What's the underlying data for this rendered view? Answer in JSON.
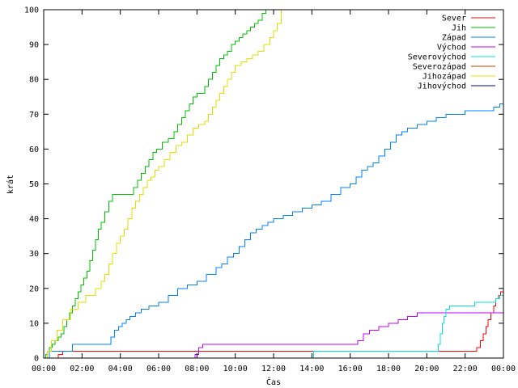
{
  "chart_data": {
    "type": "line",
    "title": "",
    "xlabel": "Čas",
    "ylabel": "krát",
    "xlim": [
      0,
      24
    ],
    "ylim": [
      0,
      100
    ],
    "x_ticks": [
      {
        "value": 0,
        "label": "00:00"
      },
      {
        "value": 2,
        "label": "02:00"
      },
      {
        "value": 4,
        "label": "04:00"
      },
      {
        "value": 6,
        "label": "06:00"
      },
      {
        "value": 8,
        "label": "08:00"
      },
      {
        "value": 10,
        "label": "10:00"
      },
      {
        "value": 12,
        "label": "12:00"
      },
      {
        "value": 14,
        "label": "14:00"
      },
      {
        "value": 16,
        "label": "16:00"
      },
      {
        "value": 18,
        "label": "18:00"
      },
      {
        "value": 20,
        "label": "20:00"
      },
      {
        "value": 22,
        "label": "22:00"
      },
      {
        "value": 24,
        "label": "00:00"
      }
    ],
    "y_ticks": [
      0,
      10,
      20,
      30,
      40,
      50,
      60,
      70,
      80,
      90,
      100
    ],
    "grid": false,
    "legend_position": "top-right",
    "step": true,
    "series": [
      {
        "name": "Sever",
        "color": "#ff0000",
        "x": [
          0.0,
          0.75,
          1.0,
          8.0,
          14.0,
          22.6,
          22.8,
          22.95,
          23.1,
          23.2,
          23.35,
          23.5,
          23.6,
          23.75,
          23.85,
          24.0
        ],
        "y": [
          0,
          1,
          2,
          2,
          2,
          3,
          5,
          7,
          9,
          11,
          13,
          15,
          17,
          18,
          19,
          21
        ]
      },
      {
        "name": "Jih",
        "color": "#00c000",
        "x": [
          0.0,
          0.1,
          0.2,
          0.3,
          0.45,
          0.6,
          0.75,
          0.9,
          1.05,
          1.2,
          1.35,
          1.5,
          1.65,
          1.8,
          1.95,
          2.1,
          2.25,
          2.4,
          2.55,
          2.7,
          2.85,
          3.0,
          3.2,
          3.4,
          3.6,
          4.5,
          4.7,
          4.9,
          5.1,
          5.3,
          5.5,
          5.7,
          5.9,
          6.2,
          6.5,
          6.8,
          7.0,
          7.2,
          7.4,
          7.6,
          7.8,
          8.0,
          8.2,
          8.4,
          8.6,
          8.8,
          9.0,
          9.2,
          9.4,
          9.6,
          9.8,
          10.0,
          10.2,
          10.4,
          10.6,
          10.8,
          11.0,
          11.2,
          11.4,
          11.6
        ],
        "y": [
          0,
          1,
          2,
          3,
          4,
          5,
          6,
          7,
          9,
          11,
          13,
          15,
          17,
          19,
          21,
          23,
          25,
          28,
          31,
          34,
          37,
          39,
          42,
          45,
          47,
          47,
          49,
          51,
          53,
          55,
          57,
          59,
          60,
          62,
          63,
          65,
          67,
          69,
          71,
          73,
          75,
          76,
          76,
          78,
          80,
          82,
          84,
          86,
          87,
          88,
          90,
          91,
          92,
          93,
          94,
          95,
          96,
          97,
          99,
          100
        ]
      },
      {
        "name": "Západ",
        "color": "#0080ff",
        "x": [
          0.0,
          0.3,
          1.5,
          3.5,
          3.7,
          3.9,
          4.1,
          4.3,
          4.5,
          4.8,
          5.1,
          5.5,
          6.0,
          6.5,
          7.0,
          7.5,
          8.0,
          8.5,
          9.0,
          9.3,
          9.6,
          9.9,
          10.2,
          10.5,
          10.8,
          11.1,
          11.4,
          11.7,
          12.0,
          12.5,
          13.0,
          13.5,
          14.0,
          14.5,
          15.0,
          15.5,
          16.0,
          16.3,
          16.6,
          16.9,
          17.2,
          17.5,
          17.8,
          18.1,
          18.4,
          18.7,
          19.0,
          19.5,
          20.0,
          20.5,
          21.0,
          21.5,
          22.0,
          22.5,
          23.0,
          23.5,
          23.8,
          24.0
        ],
        "y": [
          0,
          2,
          4,
          6,
          8,
          9,
          10,
          11,
          12,
          13,
          14,
          15,
          16,
          18,
          20,
          21,
          22,
          24,
          26,
          27,
          29,
          30,
          32,
          34,
          36,
          37,
          38,
          39,
          40,
          41,
          42,
          43,
          44,
          45,
          47,
          49,
          50,
          52,
          54,
          55,
          56,
          58,
          60,
          62,
          64,
          65,
          66,
          67,
          68,
          69,
          70,
          70,
          71,
          71,
          71,
          72,
          73,
          73
        ]
      },
      {
        "name": "Východ",
        "color": "#c000ff",
        "x": [
          0.0,
          7.9,
          8.1,
          8.3,
          14.5,
          16.4,
          16.7,
          17.0,
          17.5,
          18.0,
          18.5,
          19.0,
          19.5,
          20.0,
          24.0
        ],
        "y": [
          0,
          1,
          3,
          4,
          4,
          5,
          7,
          8,
          9,
          10,
          11,
          12,
          13,
          13,
          13
        ]
      },
      {
        "name": "Severovýchod",
        "color": "#00e0e0",
        "x": [
          0.0,
          14.1,
          20.5,
          20.6,
          20.7,
          20.8,
          20.9,
          21.0,
          21.2,
          22.0,
          22.5,
          23.0,
          23.3,
          23.6,
          23.8,
          24.0
        ],
        "y": [
          0,
          2,
          2,
          4,
          7,
          10,
          12,
          14,
          15,
          15,
          16,
          16,
          16,
          17,
          18,
          19
        ]
      },
      {
        "name": "Severozápad",
        "color": "#c04000",
        "x": [
          0.0,
          24.0
        ],
        "y": [
          0,
          0
        ]
      },
      {
        "name": "Jihozápad",
        "color": "#e0e000",
        "x": [
          0.0,
          0.2,
          0.4,
          0.7,
          1.0,
          1.4,
          1.8,
          2.2,
          2.7,
          3.0,
          3.2,
          3.4,
          3.6,
          3.8,
          4.0,
          4.2,
          4.4,
          4.6,
          4.8,
          5.0,
          5.2,
          5.4,
          5.6,
          5.8,
          6.0,
          6.3,
          6.6,
          6.9,
          7.2,
          7.5,
          7.8,
          8.1,
          8.4,
          8.6,
          8.8,
          9.0,
          9.2,
          9.4,
          9.6,
          9.8,
          10.0,
          10.3,
          10.6,
          10.9,
          11.2,
          11.5,
          11.8,
          12.0,
          12.2,
          12.4
        ],
        "y": [
          0,
          2,
          5,
          8,
          11,
          14,
          16,
          18,
          20,
          22,
          24,
          27,
          30,
          33,
          35,
          37,
          40,
          43,
          45,
          47,
          49,
          51,
          52,
          54,
          55,
          57,
          59,
          61,
          62,
          64,
          66,
          67,
          68,
          70,
          72,
          74,
          76,
          78,
          80,
          82,
          84,
          85,
          86,
          87,
          88,
          90,
          92,
          94,
          96,
          100
        ]
      },
      {
        "name": "Jihovýchod",
        "color": "#0000a0",
        "x": [
          0.0,
          24.0
        ],
        "y": [
          0,
          0
        ]
      }
    ]
  }
}
